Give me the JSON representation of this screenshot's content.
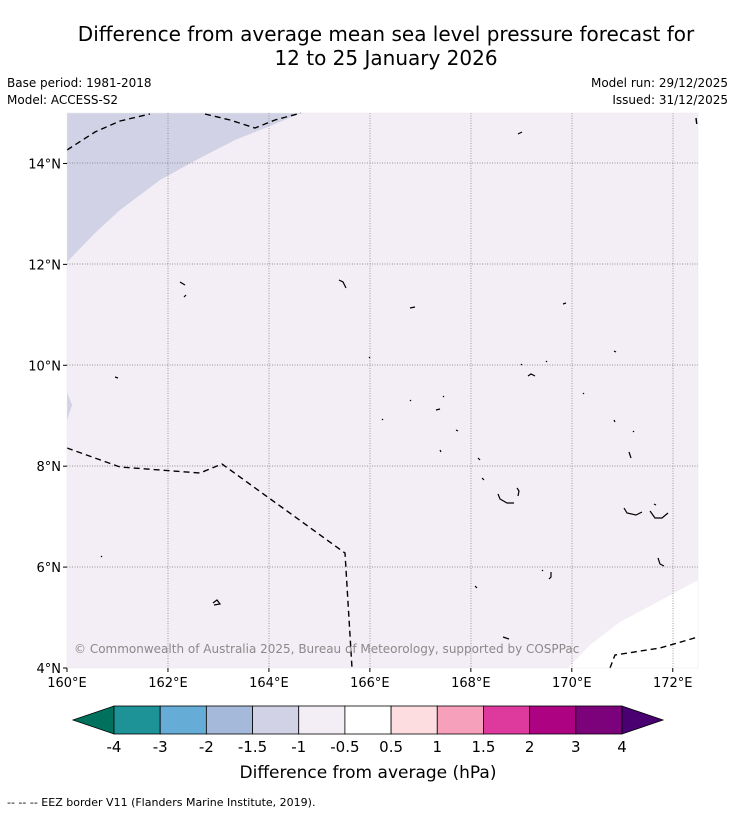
{
  "title": {
    "line1": "Difference from average mean sea level pressure forecast for",
    "line2": "12 to 25 January 2026"
  },
  "meta": {
    "base_period": "Base period: 1981-2018",
    "model": "Model: ACCESS-S2",
    "model_run": "Model run: 29/12/2025",
    "issued": "Issued: 31/12/2025"
  },
  "map": {
    "lon_ticks": [
      "160°E",
      "162°E",
      "164°E",
      "166°E",
      "168°E",
      "170°E",
      "172°E"
    ],
    "lat_ticks": [
      "14°N",
      "12°N",
      "10°N",
      "8°N",
      "6°N",
      "4°N"
    ],
    "lon_range": [
      160,
      172.5
    ],
    "lat_range": [
      4,
      15
    ],
    "copyright": "© Commonwealth of Australia 2025, Bureau of Meteorology, supported by COSPPac",
    "colors": {
      "band_minus1": "#d2d2e6",
      "band_minus05": "#f3edf5",
      "band_zero": "#ffffff"
    }
  },
  "colorbar": {
    "label": "Difference from average (hPa)",
    "ticks": [
      "-4",
      "-3",
      "-2",
      "-1.5",
      "-1",
      "-0.5",
      "0.5",
      "1",
      "1.5",
      "2",
      "3",
      "4"
    ],
    "colors": [
      "#00715c",
      "#1e9397",
      "#65acd6",
      "#a5badb",
      "#d2d2e6",
      "#f3edf5",
      "#ffffff",
      "#fddde0",
      "#f7a0bc",
      "#de3a9e",
      "#ad0383",
      "#7c027b",
      "#4a0070"
    ]
  },
  "footer": {
    "legend": "--  --  -- EEZ border V11 (Flanders Marine Institute, 2019)."
  }
}
